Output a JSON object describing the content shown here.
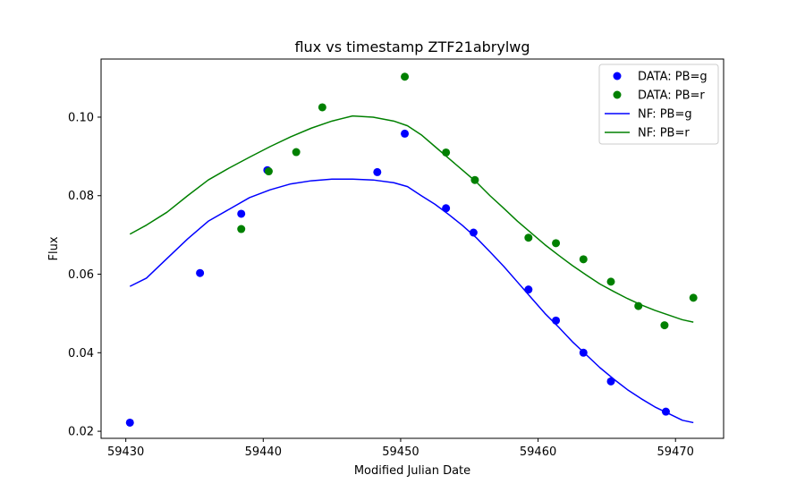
{
  "chart_data": {
    "type": "scatter",
    "title": "flux vs timestamp ZTF21abrylwg",
    "xlabel": "Modified Julian Date",
    "ylabel": "Flux",
    "xlim": [
      59428.2,
      59473.5
    ],
    "ylim": [
      0.0182,
      0.1148
    ],
    "x_ticks": [
      59430,
      59440,
      59450,
      59460,
      59470
    ],
    "y_ticks": [
      0.02,
      0.04,
      0.06,
      0.08,
      0.1
    ],
    "y_tick_labels": [
      "0.02",
      "0.04",
      "0.06",
      "0.08",
      "0.10"
    ],
    "grid": false,
    "legend_position": "top-right",
    "colors": {
      "g": "#0000ff",
      "r": "#008000"
    },
    "series": [
      {
        "name": "DATA: PB=g",
        "kind": "scatter",
        "color": "#0000ff",
        "points": [
          [
            59430.3,
            0.0222
          ],
          [
            59435.4,
            0.0603
          ],
          [
            59438.4,
            0.0754
          ],
          [
            59440.3,
            0.0865
          ],
          [
            59448.3,
            0.086
          ],
          [
            59450.3,
            0.0958
          ],
          [
            59453.3,
            0.0768
          ],
          [
            59455.3,
            0.0706
          ],
          [
            59459.3,
            0.0561
          ],
          [
            59461.3,
            0.0482
          ],
          [
            59463.3,
            0.04
          ],
          [
            59465.3,
            0.0327
          ],
          [
            59469.3,
            0.025
          ]
        ]
      },
      {
        "name": "DATA: PB=r",
        "kind": "scatter",
        "color": "#008000",
        "points": [
          [
            59438.4,
            0.0715
          ],
          [
            59440.4,
            0.0862
          ],
          [
            59442.4,
            0.0911
          ],
          [
            59444.3,
            0.1025
          ],
          [
            59450.3,
            0.1103
          ],
          [
            59453.3,
            0.091
          ],
          [
            59455.4,
            0.084
          ],
          [
            59459.3,
            0.0693
          ],
          [
            59461.3,
            0.0679
          ],
          [
            59463.3,
            0.0638
          ],
          [
            59465.3,
            0.0581
          ],
          [
            59467.3,
            0.0519
          ],
          [
            59469.2,
            0.047
          ],
          [
            59471.3,
            0.054
          ]
        ]
      },
      {
        "name": "NF: PB=g",
        "kind": "line",
        "color": "#0000ff",
        "points": [
          [
            59430.3,
            0.0569
          ],
          [
            59431.5,
            0.059
          ],
          [
            59433.0,
            0.064
          ],
          [
            59434.5,
            0.069
          ],
          [
            59436.0,
            0.0735
          ],
          [
            59437.5,
            0.0765
          ],
          [
            59439.0,
            0.0795
          ],
          [
            59440.5,
            0.0815
          ],
          [
            59442.0,
            0.083
          ],
          [
            59443.5,
            0.0838
          ],
          [
            59445.0,
            0.0842
          ],
          [
            59446.5,
            0.0842
          ],
          [
            59448.0,
            0.084
          ],
          [
            59449.5,
            0.0833
          ],
          [
            59450.5,
            0.0823
          ],
          [
            59451.5,
            0.08
          ],
          [
            59452.5,
            0.0778
          ],
          [
            59453.5,
            0.0752
          ],
          [
            59454.5,
            0.0724
          ],
          [
            59455.5,
            0.0693
          ],
          [
            59456.5,
            0.0657
          ],
          [
            59457.5,
            0.062
          ],
          [
            59458.5,
            0.058
          ],
          [
            59459.5,
            0.054
          ],
          [
            59460.5,
            0.05
          ],
          [
            59461.5,
            0.0465
          ],
          [
            59462.5,
            0.0428
          ],
          [
            59463.5,
            0.0395
          ],
          [
            59464.5,
            0.0362
          ],
          [
            59465.5,
            0.0333
          ],
          [
            59466.5,
            0.0306
          ],
          [
            59467.5,
            0.0283
          ],
          [
            59468.5,
            0.0262
          ],
          [
            59469.5,
            0.0245
          ],
          [
            59470.5,
            0.0228
          ],
          [
            59471.3,
            0.0222
          ]
        ]
      },
      {
        "name": "NF: PB=r",
        "kind": "line",
        "color": "#008000",
        "points": [
          [
            59430.3,
            0.0702
          ],
          [
            59431.5,
            0.0725
          ],
          [
            59433.0,
            0.0758
          ],
          [
            59434.5,
            0.08
          ],
          [
            59436.0,
            0.084
          ],
          [
            59437.5,
            0.087
          ],
          [
            59439.0,
            0.0898
          ],
          [
            59440.5,
            0.0925
          ],
          [
            59442.0,
            0.095
          ],
          [
            59443.5,
            0.0972
          ],
          [
            59445.0,
            0.099
          ],
          [
            59446.5,
            0.1003
          ],
          [
            59448.0,
            0.1
          ],
          [
            59449.5,
            0.099
          ],
          [
            59450.5,
            0.0978
          ],
          [
            59451.5,
            0.0955
          ],
          [
            59452.5,
            0.0925
          ],
          [
            59453.5,
            0.0895
          ],
          [
            59454.5,
            0.0865
          ],
          [
            59455.5,
            0.0835
          ],
          [
            59456.5,
            0.08
          ],
          [
            59457.5,
            0.0768
          ],
          [
            59458.5,
            0.0735
          ],
          [
            59459.5,
            0.0705
          ],
          [
            59460.5,
            0.0675
          ],
          [
            59461.5,
            0.0648
          ],
          [
            59462.5,
            0.0622
          ],
          [
            59463.5,
            0.0598
          ],
          [
            59464.5,
            0.0575
          ],
          [
            59465.5,
            0.0556
          ],
          [
            59466.5,
            0.0538
          ],
          [
            59467.5,
            0.0522
          ],
          [
            59468.5,
            0.0508
          ],
          [
            59469.5,
            0.0496
          ],
          [
            59470.5,
            0.0484
          ],
          [
            59471.3,
            0.0478
          ]
        ]
      }
    ]
  }
}
